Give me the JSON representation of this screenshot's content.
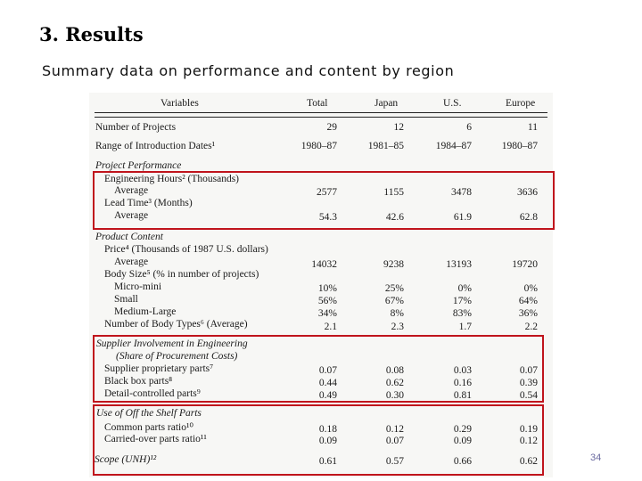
{
  "title": "3. Results",
  "subtitle": "Summary data on performance and content by region",
  "page_number": "34",
  "columns": [
    "Variables",
    "Total",
    "Japan",
    "U.S.",
    "Europe"
  ],
  "rows": [
    {
      "label": "Number of Projects",
      "values": [
        "29",
        "12",
        "6",
        "11"
      ]
    },
    {
      "label": "Range of Introduction Dates¹",
      "values": [
        "1980–87",
        "1981–85",
        "1984–87",
        "1980–87"
      ]
    },
    {
      "label": "Project Performance",
      "section": true,
      "values": []
    },
    {
      "label": "Engineering Hours² (Thousands)",
      "values": []
    },
    {
      "label": "Average",
      "values": [
        "2577",
        "1155",
        "3478",
        "3636"
      ]
    },
    {
      "label": "Lead Time³ (Months)",
      "values": []
    },
    {
      "label": "Average",
      "values": [
        "54.3",
        "42.6",
        "61.9",
        "62.8"
      ]
    },
    {
      "label": "Product Content",
      "section": true,
      "values": []
    },
    {
      "label": "Price⁴ (Thousands of 1987 U.S. dollars)",
      "values": []
    },
    {
      "label": "Average",
      "values": [
        "14032",
        "9238",
        "13193",
        "19720"
      ]
    },
    {
      "label": "Body Size⁵ (% in number of projects)",
      "values": []
    },
    {
      "label": "Micro-mini",
      "values": [
        "10%",
        "25%",
        "0%",
        "0%"
      ]
    },
    {
      "label": "Small",
      "values": [
        "56%",
        "67%",
        "17%",
        "64%"
      ]
    },
    {
      "label": "Medium-Large",
      "values": [
        "34%",
        "8%",
        "83%",
        "36%"
      ]
    },
    {
      "label": "Number of Body Types⁶ (Average)",
      "values": [
        "2.1",
        "2.3",
        "1.7",
        "2.2"
      ]
    },
    {
      "label": "Supplier Involvement in Engineering",
      "section": true,
      "values": []
    },
    {
      "label": "(Share of Procurement Costs)",
      "section": true,
      "values": []
    },
    {
      "label": "Supplier proprietary parts⁷",
      "values": [
        "0.07",
        "0.08",
        "0.03",
        "0.07"
      ]
    },
    {
      "label": "Black box parts⁸",
      "values": [
        "0.44",
        "0.62",
        "0.16",
        "0.39"
      ]
    },
    {
      "label": "Detail-controlled parts⁹",
      "values": [
        "0.49",
        "0.30",
        "0.81",
        "0.54"
      ]
    },
    {
      "label": "Use of Off the Shelf Parts",
      "section": true,
      "values": []
    },
    {
      "label": "Common parts ratio¹⁰",
      "values": [
        "0.18",
        "0.12",
        "0.29",
        "0.19"
      ]
    },
    {
      "label": "Carried-over parts ratio¹¹",
      "values": [
        "0.09",
        "0.07",
        "0.09",
        "0.12"
      ]
    },
    {
      "label": "Scope (UNH)¹²",
      "section": true,
      "values": [
        "0.61",
        "0.57",
        "0.66",
        "0.62"
      ]
    }
  ],
  "colors": {
    "highlight": "#c0141c",
    "page_number": "#6a6aa0"
  }
}
